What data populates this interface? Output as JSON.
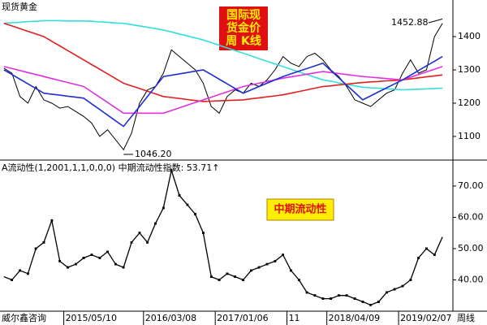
{
  "source": "威尔鑫咨询",
  "period": "周线",
  "chart_data": [
    {
      "type": "line",
      "title": "现货黄金",
      "badge": [
        "国际现",
        "货金价",
        "周  K线"
      ],
      "annotations": [
        {
          "value": 1452.88,
          "label": "1452.88"
        },
        {
          "value": 1046.2,
          "label": "1046.20"
        }
      ],
      "ylim": [
        1029,
        1510
      ],
      "yticks": [
        1100,
        1200,
        1300,
        1400
      ],
      "series": [
        {
          "color": "#000000",
          "values": [
            1305,
            1290,
            1220,
            1200,
            1250,
            1210,
            1200,
            1185,
            1190,
            1175,
            1160,
            1140,
            1100,
            1120,
            1090,
            1060,
            1110,
            1200,
            1240,
            1250,
            1290,
            1360,
            1340,
            1320,
            1300,
            1260,
            1190,
            1170,
            1220,
            1240,
            1230,
            1260,
            1250,
            1270,
            1300,
            1340,
            1320,
            1310,
            1340,
            1350,
            1330,
            1300,
            1280,
            1250,
            1210,
            1200,
            1190,
            1210,
            1230,
            1240,
            1290,
            1330,
            1290,
            1300,
            1400,
            1440
          ]
        },
        {
          "color": "#33dddd",
          "values": [
            1440,
            1442,
            1443,
            1445,
            1446,
            1448,
            1448,
            1448,
            1447,
            1447,
            1447,
            1446,
            1444,
            1443,
            1441,
            1440,
            1436,
            1432,
            1428,
            1424,
            1420,
            1414,
            1408,
            1402,
            1396,
            1390,
            1382,
            1374,
            1366,
            1358,
            1350,
            1342,
            1334,
            1326,
            1318,
            1310,
            1302,
            1294,
            1286,
            1278,
            1270,
            1266,
            1261,
            1257,
            1252,
            1248,
            1246,
            1245,
            1243,
            1242,
            1240,
            1241,
            1242,
            1243,
            1244,
            1245
          ]
        },
        {
          "color": "#e02020",
          "values": [
            1440,
            1432,
            1424,
            1416,
            1408,
            1400,
            1386,
            1372,
            1358,
            1344,
            1330,
            1316,
            1302,
            1288,
            1274,
            1260,
            1252,
            1244,
            1236,
            1228,
            1220,
            1217,
            1214,
            1211,
            1208,
            1205,
            1206,
            1207,
            1208,
            1209,
            1210,
            1213,
            1216,
            1219,
            1222,
            1225,
            1230,
            1235,
            1240,
            1245,
            1250,
            1252,
            1255,
            1257,
            1260,
            1262,
            1264,
            1265,
            1267,
            1268,
            1270,
            1273,
            1276,
            1279,
            1282,
            1285
          ]
        },
        {
          "color": "#e030e0",
          "values": [
            1310,
            1304,
            1298,
            1292,
            1286,
            1280,
            1274,
            1268,
            1262,
            1256,
            1250,
            1234,
            1218,
            1202,
            1186,
            1170,
            1170,
            1170,
            1170,
            1170,
            1170,
            1178,
            1186,
            1194,
            1202,
            1210,
            1218,
            1226,
            1234,
            1242,
            1250,
            1255,
            1260,
            1265,
            1270,
            1275,
            1279,
            1283,
            1287,
            1291,
            1295,
            1292,
            1289,
            1286,
            1283,
            1280,
            1278,
            1276,
            1274,
            1272,
            1270,
            1278,
            1286,
            1294,
            1302,
            1310
          ]
        },
        {
          "color": "#1f2fd0",
          "values": [
            1300,
            1286,
            1272,
            1258,
            1244,
            1230,
            1227,
            1224,
            1221,
            1218,
            1215,
            1198,
            1181,
            1164,
            1147,
            1130,
            1160,
            1190,
            1220,
            1250,
            1280,
            1284,
            1288,
            1292,
            1296,
            1300,
            1286,
            1272,
            1258,
            1244,
            1230,
            1240,
            1250,
            1260,
            1270,
            1280,
            1288,
            1296,
            1304,
            1312,
            1320,
            1298,
            1276,
            1254,
            1232,
            1210,
            1222,
            1234,
            1246,
            1258,
            1270,
            1284,
            1298,
            1312,
            1326,
            1340
          ]
        }
      ]
    },
    {
      "type": "line",
      "title": "A流动性(1,2001,1,1,0,0,0)  中期流动性指数: 53.71↑",
      "badge": [
        "中期流动性"
      ],
      "ylim": [
        30,
        78.3
      ],
      "yticks": [
        {
          "value": 40,
          "label": "40.00"
        },
        {
          "value": 50,
          "label": "50.00"
        },
        {
          "value": 60,
          "label": "60.00"
        },
        {
          "value": 70,
          "label": "70.00"
        }
      ],
      "categories": [
        null,
        null,
        null,
        null,
        null,
        null,
        null,
        null,
        "2015/05/10",
        null,
        null,
        null,
        null,
        null,
        null,
        null,
        null,
        null,
        "2016/03/08",
        null,
        null,
        null,
        null,
        null,
        null,
        null,
        null,
        "2017/01/06",
        null,
        null,
        null,
        null,
        null,
        null,
        null,
        null,
        "11",
        null,
        null,
        null,
        null,
        "2018/04/09",
        null,
        null,
        null,
        null,
        null,
        null,
        null,
        null,
        "2019/02/07",
        null,
        null,
        null,
        null,
        null
      ],
      "series": [
        {
          "color": "#000000",
          "values": [
            41,
            40,
            43,
            42,
            50,
            52,
            59,
            46,
            44,
            45,
            47,
            48,
            47,
            49,
            45,
            44,
            52,
            55,
            52,
            58,
            63,
            75,
            67,
            64,
            61,
            55,
            41,
            40,
            42,
            41,
            40,
            43,
            44,
            45,
            46,
            48,
            43,
            40,
            36,
            35,
            34,
            34,
            35,
            35,
            34,
            33,
            32,
            33,
            36,
            37,
            38,
            40,
            47,
            50,
            48,
            53.71
          ]
        }
      ]
    }
  ]
}
